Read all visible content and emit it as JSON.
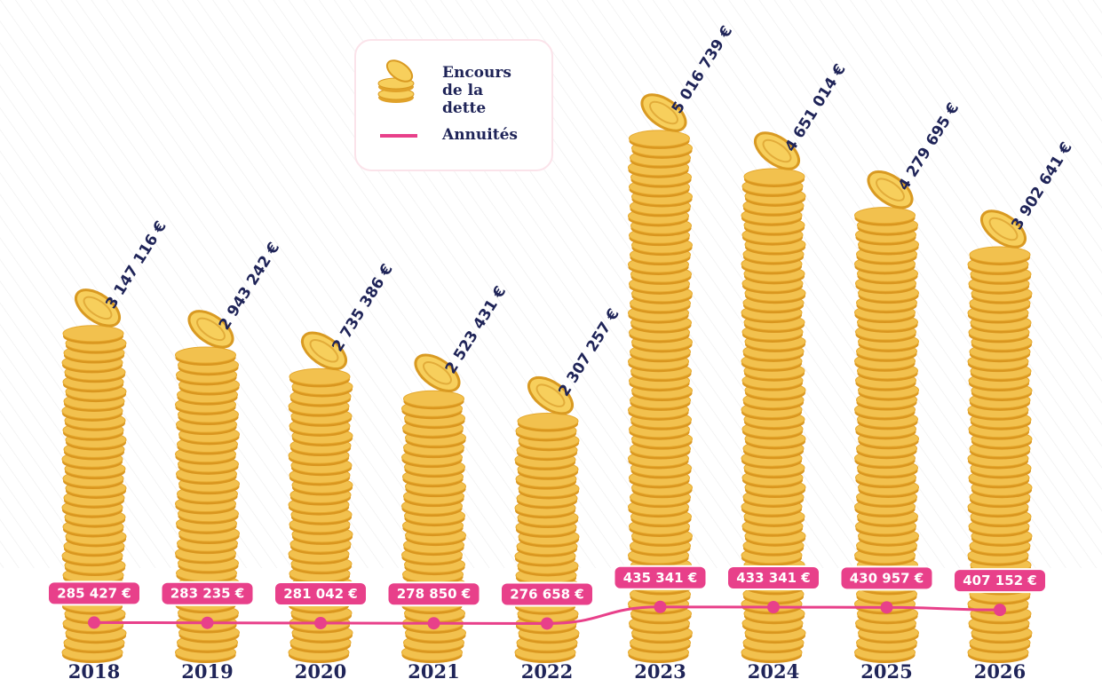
{
  "chart_data": {
    "type": "bar",
    "categories": [
      "2018",
      "2019",
      "2020",
      "2021",
      "2022",
      "2023",
      "2024",
      "2025",
      "2026"
    ],
    "series": [
      {
        "name": "Encours de la dette",
        "color": "#f2c14e",
        "values": [
          3147116,
          2943242,
          2735386,
          2523431,
          2307257,
          5016739,
          4651014,
          4279695,
          3902641
        ],
        "value_labels": [
          "3 147 116 €",
          "2 943 242 €",
          "2 735 386 €",
          "2 523 431 €",
          "2 307 257 €",
          "5 016 739 €",
          "4 651 014 €",
          "4 279 695 €",
          "3 902 641 €"
        ]
      },
      {
        "name": "Annuités",
        "type": "line",
        "color": "#e8408a",
        "values": [
          285427,
          283235,
          281042,
          278850,
          276658,
          435341,
          433341,
          430957,
          407152
        ],
        "value_labels": [
          "285 427 €",
          "283 235 €",
          "281 042 €",
          "278 850 €",
          "276 658 €",
          "435 341 €",
          "433 341 €",
          "430 957 €",
          "407 152 €"
        ]
      }
    ]
  }
}
